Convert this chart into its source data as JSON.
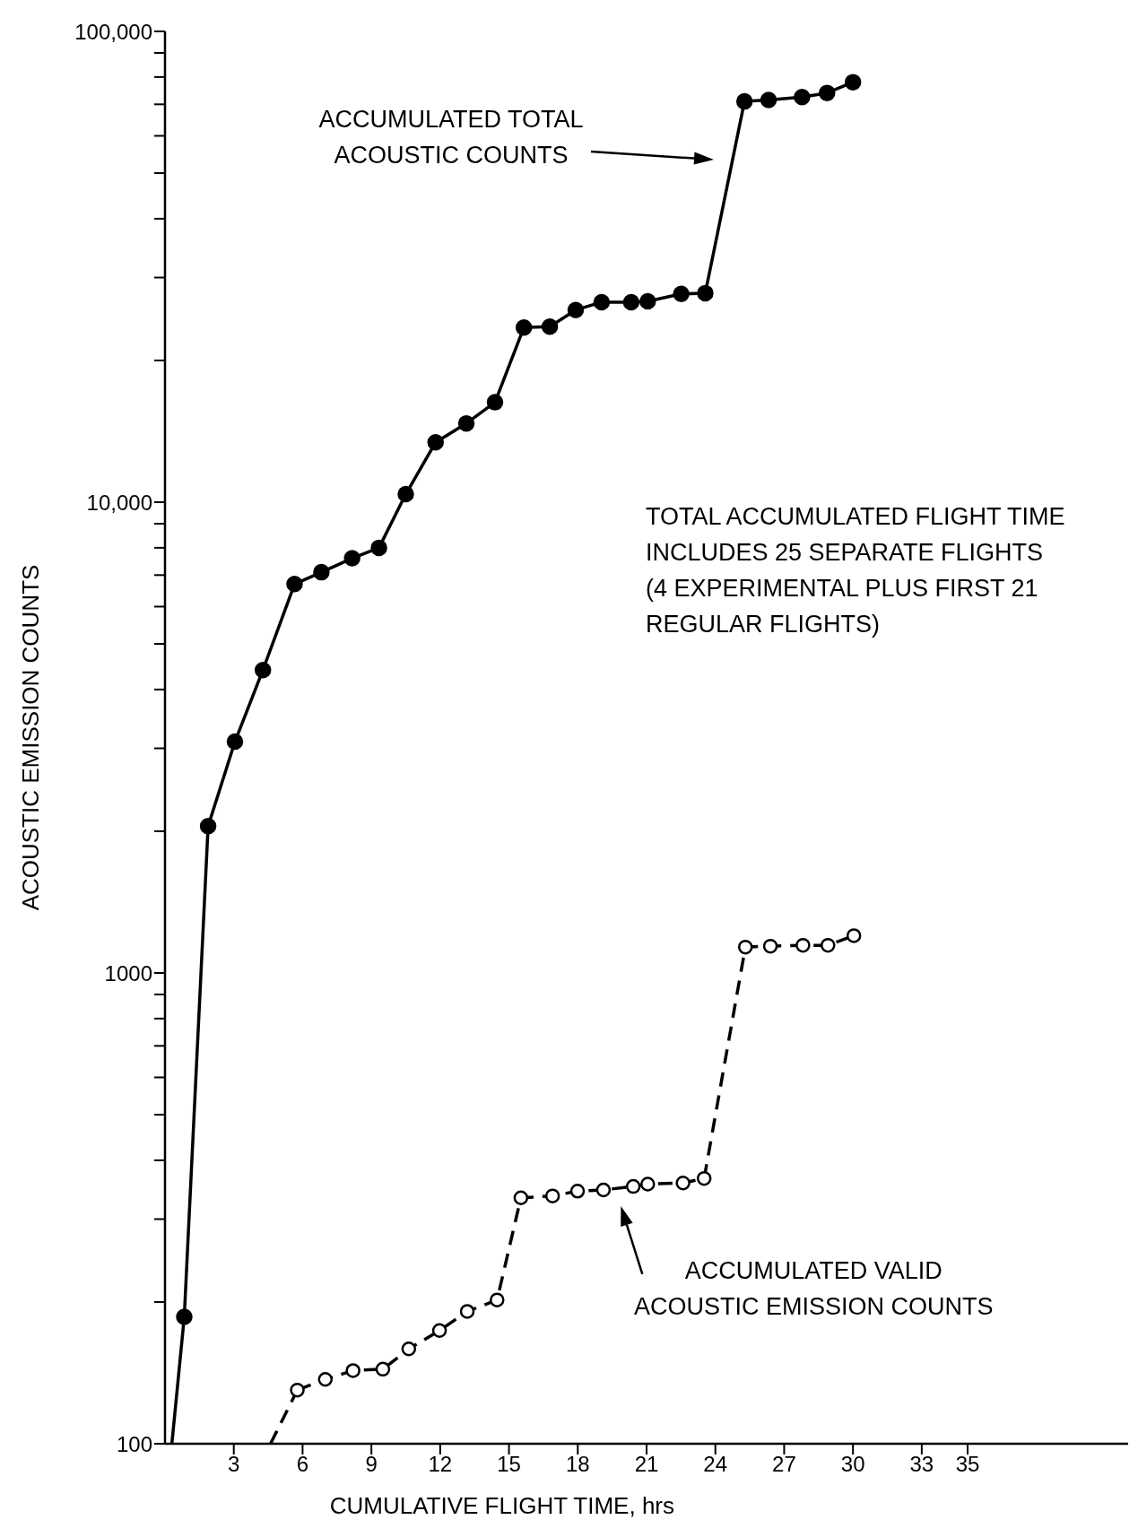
{
  "chart_data": {
    "type": "line",
    "xlabel": "CUMULATIVE FLIGHT TIME, hrs",
    "ylabel": "ACOUSTIC EMISSION COUNTS",
    "log": "y",
    "xlim": [
      0,
      42
    ],
    "xticks": [
      3,
      6,
      9,
      12,
      15,
      18,
      21,
      24,
      27,
      30,
      33,
      35
    ],
    "ylim": [
      100,
      100000
    ],
    "yticks": [
      100,
      {
        "value": 200,
        "label": null
      },
      {
        "value": 300,
        "label": null
      },
      {
        "value": 400,
        "label": null
      },
      {
        "value": 500,
        "label": null
      },
      {
        "value": 600,
        "label": null
      },
      {
        "value": 700,
        "label": null
      },
      {
        "value": 800,
        "label": null
      },
      {
        "value": 900,
        "label": null
      },
      1000,
      {
        "value": 2000,
        "label": null
      },
      {
        "value": 3000,
        "label": null
      },
      {
        "value": 4000,
        "label": null
      },
      {
        "value": 5000,
        "label": null
      },
      {
        "value": 6000,
        "label": null
      },
      {
        "value": 7000,
        "label": null
      },
      {
        "value": 8000,
        "label": null
      },
      {
        "value": 9000,
        "label": null
      },
      {
        "value": 10000,
        "label": "10,000"
      },
      {
        "value": 20000,
        "label": null
      },
      {
        "value": 30000,
        "label": null
      },
      {
        "value": 40000,
        "label": null
      },
      {
        "value": 50000,
        "label": null
      },
      {
        "value": 60000,
        "label": null
      },
      {
        "value": 70000,
        "label": null
      },
      {
        "value": 80000,
        "label": null
      },
      {
        "value": 90000,
        "label": null
      },
      {
        "value": 100000,
        "label": "100,000"
      }
    ],
    "series": [
      {
        "color": "#000000",
        "marker": "circle",
        "line_style": "solid",
        "x": [
          0.84,
          1.88,
          3.05,
          4.27,
          5.65,
          6.82,
          8.16,
          9.33,
          10.5,
          11.8,
          13.14,
          14.39,
          15.65,
          16.78,
          17.91,
          19.04,
          20.33,
          21.05,
          22.51,
          23.56,
          25.27,
          26.32,
          27.78,
          28.87,
          30.0
        ],
        "values": [
          186,
          2050,
          3100,
          4400,
          6700,
          7100,
          7600,
          8000,
          10400,
          13400,
          14700,
          16300,
          23500,
          23600,
          25600,
          26600,
          26600,
          26700,
          27700,
          27800,
          71000,
          71500,
          72500,
          74000,
          78000
        ]
      },
      {
        "color": "#000000",
        "marker": "none",
        "line_style": "solid",
        "x": [
          0.3,
          0.84
        ],
        "values": [
          100,
          186
        ]
      },
      {
        "color": "#000000",
        "marker": "circle",
        "line_style": "dashed",
        "x": [
          5.77,
          6.99,
          8.2,
          9.5,
          10.63,
          11.97,
          13.18,
          14.48,
          15.52,
          16.9,
          17.99,
          19.12,
          20.42,
          21.05,
          22.59,
          23.51,
          25.31,
          26.4,
          27.82,
          28.91,
          30.04
        ],
        "values": [
          130,
          137,
          143,
          144,
          159,
          174,
          191,
          202,
          333,
          336,
          344,
          346,
          352,
          356,
          358,
          366,
          1135,
          1140,
          1145,
          1145,
          1200
        ]
      },
      {
        "color": "#000000",
        "marker": "none",
        "line_style": "dashed",
        "x": [
          4.6,
          5.77
        ],
        "values": [
          100,
          130
        ]
      }
    ],
    "annotations": [
      "ACCUMULATED TOTAL\nACOUSTIC COUNTS",
      {
        "text": "ACCUMULATED VALID\nACOUSTIC EMISSION COUNTS",
        "x": 19.8,
        "y": 340
      },
      "TOTAL ACCUMULATED FLIGHT TIME\nINCLUDES 25 SEPARATE FLIGHTS\n(4 EXPERIMENTAL PLUS FIRST 21\nREGULAR FLIGHTS)"
    ]
  }
}
